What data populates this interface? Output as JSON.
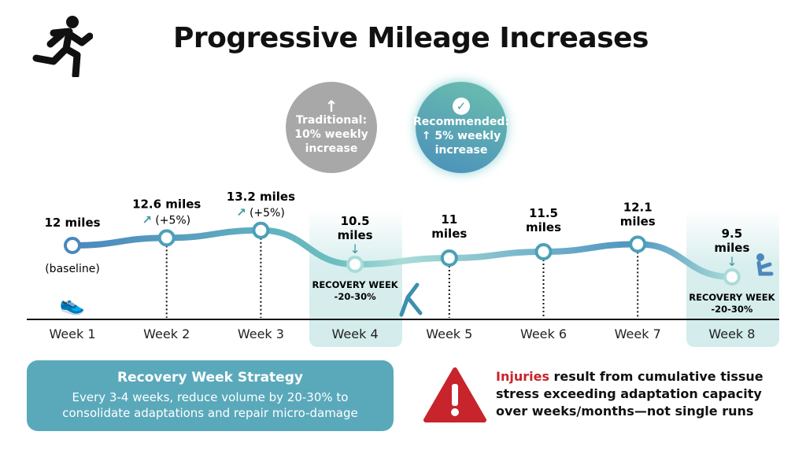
{
  "title": "Progressive Mileage Increases",
  "traditional": {
    "line1": "Traditional:",
    "line2": "10% weekly",
    "line3": "increase"
  },
  "recommended": {
    "line1": "Recommended:",
    "line2": "5% weekly",
    "line3": "increase"
  },
  "chart_data": {
    "type": "line",
    "categories": [
      "Week 1",
      "Week 2",
      "Week 3",
      "Week 4",
      "Week 5",
      "Week 6",
      "Week 7",
      "Week 8"
    ],
    "values": [
      12,
      12.6,
      13.2,
      10.5,
      11,
      11.5,
      12.1,
      9.5
    ],
    "value_labels": [
      "12 miles",
      "12.6 miles",
      "13.2 miles",
      "10.5 miles",
      "11 miles",
      "11.5 miles",
      "12.1 miles",
      "9.5 miles"
    ],
    "annotations": [
      "(baseline)",
      "(+5%)",
      "(+5%)",
      "RECOVERY WEEK -20-30%",
      "",
      "",
      "",
      "RECOVERY WEEK -20-30%"
    ],
    "recovery_weeks": [
      "Week 4",
      "Week 8"
    ],
    "recovery_label": "RECOVERY WEEK",
    "recovery_pct": "-20-30%"
  },
  "strategy": {
    "title": "Recovery Week Strategy",
    "line1": "Every 3-4 weeks, reduce volume by 20-30% to",
    "line2": "consolidate adaptations and repair micro-damage"
  },
  "warning": {
    "highlight": "Injuries",
    "rest1": " result from cumulative tissue",
    "line2": "stress exceeding adaptation capacity",
    "line3": "over weeks/months—not single runs"
  },
  "colors": {
    "line_start": "#4a88be",
    "line_end": "#a9dcd8",
    "alert": "#c8242b",
    "box": "#5aa9bb"
  }
}
